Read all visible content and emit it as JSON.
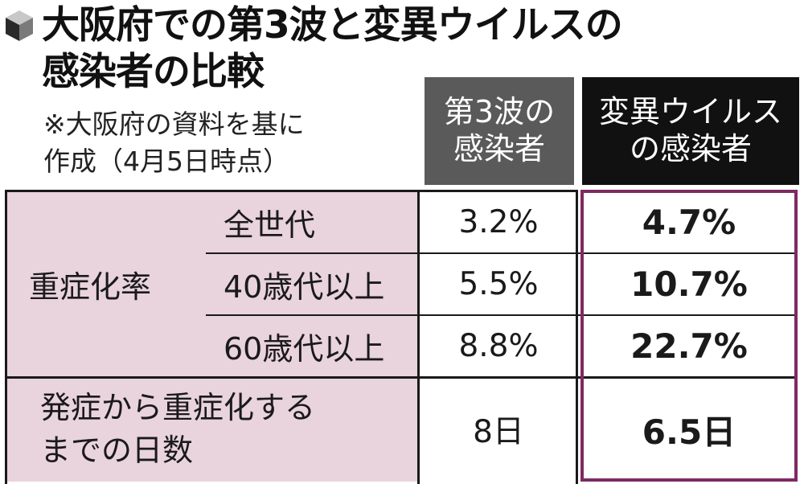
{
  "title": {
    "line1": "大阪府での第3波と変異ウイルスの",
    "line2": "感染者の比較"
  },
  "note": {
    "line1": "※大阪府の資料を基に",
    "line2": "作成（4月5日時点）"
  },
  "columns": {
    "wave3": {
      "line1": "第3波の",
      "line2": "感染者"
    },
    "variant": {
      "line1": "変異ウイルス",
      "line2": "の感染者"
    }
  },
  "severity": {
    "label": "重症化率",
    "rows": [
      {
        "group": "全世代",
        "wave3": "3.2%",
        "variant": "4.7%"
      },
      {
        "group": "40歳代以上",
        "wave3": "5.5%",
        "variant": "10.7%"
      },
      {
        "group": "60歳代以上",
        "wave3": "8.8%",
        "variant": "22.7%"
      }
    ]
  },
  "days": {
    "label_line1": "発症から重症化する",
    "label_line2": "までの日数",
    "wave3": "8日",
    "variant": "6.5日"
  },
  "colors": {
    "label_background": "#e9d3dd",
    "wave3_header": "#5a5a5a",
    "variant_header": "#111111",
    "variant_frame": "#7d2a62"
  },
  "icons": {
    "title": "cube-icon"
  }
}
